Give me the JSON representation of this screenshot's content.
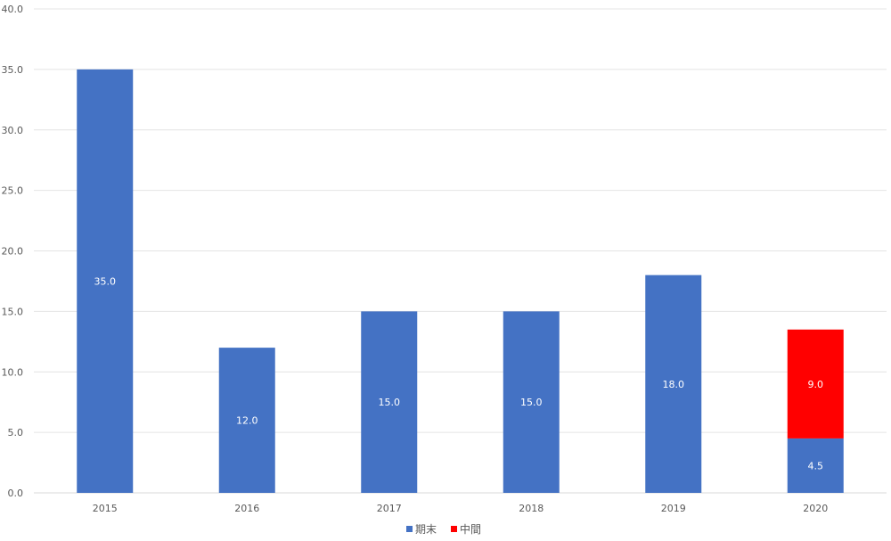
{
  "chart_data": {
    "type": "bar",
    "stacked": true,
    "categories": [
      "2015",
      "2016",
      "2017",
      "2018",
      "2019",
      "2020"
    ],
    "series": [
      {
        "name": "期末",
        "color": "#4472C4",
        "values": [
          35.0,
          12.0,
          15.0,
          15.0,
          18.0,
          4.5
        ],
        "labels": [
          "35.0",
          "12.0",
          "15.0",
          "15.0",
          "18.0",
          "4.5"
        ]
      },
      {
        "name": "中間",
        "color": "#FF0000",
        "values": [
          0,
          0,
          0,
          0,
          0,
          9.0
        ],
        "labels": [
          "",
          "",
          "",
          "",
          "",
          "9.0"
        ]
      }
    ],
    "ylim": [
      0,
      40
    ],
    "yticks": [
      "0.0",
      "5.0",
      "10.0",
      "15.0",
      "20.0",
      "25.0",
      "30.0",
      "35.0",
      "40.0"
    ],
    "ytick_values": [
      0,
      5,
      10,
      15,
      20,
      25,
      30,
      35,
      40
    ],
    "grid": true,
    "legend": "bottom-center",
    "title": "",
    "xlabel": "",
    "ylabel": ""
  }
}
